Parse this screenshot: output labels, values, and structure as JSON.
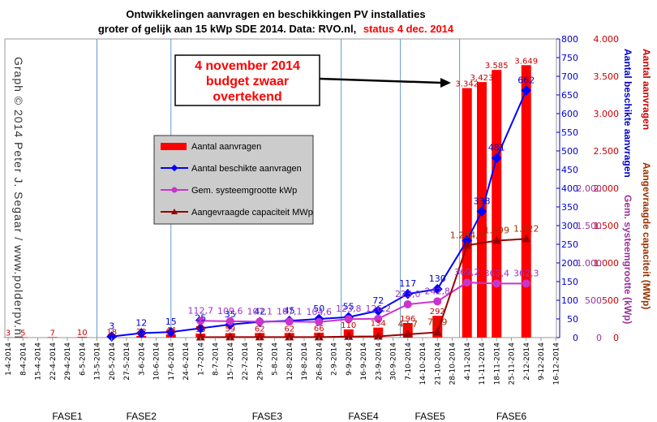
{
  "title_line1": "Ontwikkelingen  aanvragen en beschikkingen  PV installaties",
  "title_line2": "groter of gelijk aan 15 kWp SDE 2014. Data: RVO.nl,",
  "title_status": "status 4 dec. 2014",
  "watermark": "Graph  © 2014 Peter J. Segaar / www.polderpv.nl",
  "annotation": {
    "lines": [
      "4 november 2014",
      "budget zwaar",
      "overtekend"
    ]
  },
  "colors": {
    "bars": "#ff0000",
    "beschikt": "#0000ff",
    "systeem": "#cc33cc",
    "capaciteit": "#990000",
    "fase_lines": "#6699cc",
    "annotation_text": "#ff0000",
    "axis_blue": "#0000cc",
    "axis_red": "#cc0000",
    "axis_purple": "#993399",
    "axis_brown": "#993300"
  },
  "chart_data": {
    "type": "bar",
    "x_dates": [
      "1-4-2014",
      "8-4-2014",
      "15-4-2014",
      "22-4-2014",
      "29-4-2014",
      "6-5-2014",
      "13-5-2014",
      "20-5-2014",
      "27-5-2014",
      "3-6-2014",
      "10-6-2014",
      "17-6-2014",
      "24-6-2014",
      "1-7-2014",
      "8-7-2014",
      "15-7-2014",
      "22-7-2014",
      "29-7-2014",
      "5-8-2014",
      "12-8-2014",
      "19-8-2014",
      "26-8-2014",
      "2-9-2014",
      "9-9-2014",
      "16-9-2014",
      "23-9-2014",
      "30-9-2014",
      "7-10-2014",
      "14-10-2014",
      "21-10-2014",
      "28-10-2014",
      "4-11-2014",
      "11-11-2014",
      "18-11-2014",
      "25-11-2014",
      "2-12-2014",
      "9-12-2014",
      "16-12-2014"
    ],
    "fase_labels": [
      {
        "label": "FASE1",
        "x": 4
      },
      {
        "label": "FASE2",
        "x": 9
      },
      {
        "label": "FASE3",
        "x": 17.5
      },
      {
        "label": "FASE4",
        "x": 24
      },
      {
        "label": "FASE5",
        "x": 28.5
      },
      {
        "label": "FASE6",
        "x": 34
      }
    ],
    "fase_boundaries": [
      6,
      11,
      22.5,
      26.5,
      30.5
    ],
    "series": [
      {
        "name": "Aantal aanvragen",
        "axis": "aanvragen",
        "kind": "bar",
        "points": [
          [
            0,
            3
          ],
          [
            1,
            5
          ],
          [
            3,
            7
          ],
          [
            5,
            10
          ],
          [
            7,
            18
          ],
          [
            9,
            22
          ],
          [
            11,
            44
          ],
          [
            13,
            53
          ],
          [
            15,
            59
          ],
          [
            17,
            62
          ],
          [
            19,
            62
          ],
          [
            21,
            66
          ],
          [
            23,
            110
          ],
          [
            25,
            134
          ],
          [
            27,
            196
          ],
          [
            29,
            292
          ],
          [
            31,
            3342
          ],
          [
            32,
            3423
          ],
          [
            33,
            3585
          ],
          [
            35,
            3649
          ]
        ],
        "labels": [
          [
            0,
            "3"
          ],
          [
            1,
            "5"
          ],
          [
            3,
            "7"
          ],
          [
            5,
            "10"
          ],
          [
            7,
            "18"
          ],
          [
            9,
            "22"
          ],
          [
            11,
            "44"
          ],
          [
            13,
            "53"
          ],
          [
            15,
            "59"
          ],
          [
            17,
            "62"
          ],
          [
            19,
            "62"
          ],
          [
            21,
            "66"
          ],
          [
            23,
            "110"
          ],
          [
            25,
            "134"
          ],
          [
            27,
            "196"
          ],
          [
            29,
            "292"
          ],
          [
            31,
            "3.342"
          ],
          [
            32,
            "3.423"
          ],
          [
            33,
            "3.585"
          ],
          [
            35,
            "3.649"
          ]
        ]
      },
      {
        "name": "Aantal beschikte aanvragen",
        "axis": "beschikt",
        "kind": "line",
        "points": [
          [
            7,
            3
          ],
          [
            9,
            12
          ],
          [
            11,
            15
          ],
          [
            13,
            25
          ],
          [
            15,
            35
          ],
          [
            17,
            42
          ],
          [
            19,
            45
          ],
          [
            21,
            50
          ],
          [
            23,
            55
          ],
          [
            25,
            72
          ],
          [
            27,
            117
          ],
          [
            29,
            130
          ],
          [
            31,
            260
          ],
          [
            32,
            338
          ],
          [
            33,
            481
          ],
          [
            35,
            662
          ]
        ],
        "labels": [
          [
            7,
            "3"
          ],
          [
            9,
            "12"
          ],
          [
            11,
            "15"
          ],
          [
            13,
            "25"
          ],
          [
            15,
            "35"
          ],
          [
            17,
            "42"
          ],
          [
            19,
            "45"
          ],
          [
            21,
            "50"
          ],
          [
            23,
            "55"
          ],
          [
            25,
            "72"
          ],
          [
            27,
            "117"
          ],
          [
            29,
            "130"
          ],
          [
            32,
            "338"
          ],
          [
            33,
            "481"
          ],
          [
            35,
            "662"
          ]
        ]
      },
      {
        "name": "Gem. systeemgrootte kWp",
        "axis": "kwp",
        "kind": "line",
        "points": [
          [
            13,
            112.7
          ],
          [
            15,
            109.6
          ],
          [
            17,
            107.1
          ],
          [
            19,
            107.1
          ],
          [
            21,
            104.6
          ],
          [
            23,
            123.8
          ],
          [
            25,
            126.2
          ],
          [
            27,
            223.0
          ],
          [
            29,
            242.8
          ],
          [
            31,
            369.2
          ],
          [
            33,
            362.4
          ],
          [
            35,
            362.3
          ]
        ],
        "labels": [
          [
            13,
            "112,7"
          ],
          [
            15,
            "109,6"
          ],
          [
            17,
            "107,1"
          ],
          [
            19,
            "107,1"
          ],
          [
            21,
            "104,6"
          ],
          [
            23,
            "123,8"
          ],
          [
            25,
            "126,2"
          ],
          [
            27,
            "223,0"
          ],
          [
            29,
            "242,8"
          ],
          [
            31,
            "369,2"
          ],
          [
            33,
            "362,4"
          ],
          [
            35,
            "362,3"
          ]
        ]
      },
      {
        "name": "Aangevraagde capaciteit MWp",
        "axis": "mwp",
        "kind": "line",
        "points": [
          [
            13,
            6
          ],
          [
            15,
            6.5
          ],
          [
            17,
            6.6
          ],
          [
            19,
            6.6
          ],
          [
            21,
            6.9
          ],
          [
            23,
            13.6
          ],
          [
            25,
            16.9
          ],
          [
            27,
            43.7
          ],
          [
            29,
            70.9
          ],
          [
            31,
            1234.7
          ],
          [
            33,
            1299
          ],
          [
            35,
            1322
          ]
        ],
        "labels": [
          [
            27,
            "43,7"
          ],
          [
            29,
            "70,9"
          ],
          [
            31,
            "1.234,7"
          ],
          [
            33,
            "1.299"
          ],
          [
            35,
            "1.322"
          ]
        ]
      }
    ],
    "axes": {
      "aanvragen": {
        "title": "Aantal aanvragen",
        "ylim": [
          0,
          4000
        ],
        "ticks": [
          "0",
          "500",
          "1.000",
          "1.500",
          "2.000",
          "2.500",
          "3.000",
          "3.500",
          "4.000"
        ]
      },
      "beschikt": {
        "title": "Aantal beschikte aanvragen",
        "ylim": [
          0,
          800
        ],
        "ticks": [
          "0",
          "50",
          "100",
          "150",
          "200",
          "250",
          "300",
          "350",
          "400",
          "450",
          "500",
          "550",
          "600",
          "650",
          "700",
          "750",
          "800"
        ]
      },
      "kwp": {
        "title": "Gem. systeemgrootte (kWp)",
        "ylim": [
          0,
          2000
        ],
        "ticks": [
          "0",
          "500",
          "1.000",
          "1.500",
          "2.000"
        ]
      },
      "mwp": {
        "title": "Aangevraagde capaciteit (MWp)",
        "ylim": [
          0,
          4000
        ]
      }
    },
    "legend": {
      "placement": "center-left"
    },
    "grid": false
  }
}
